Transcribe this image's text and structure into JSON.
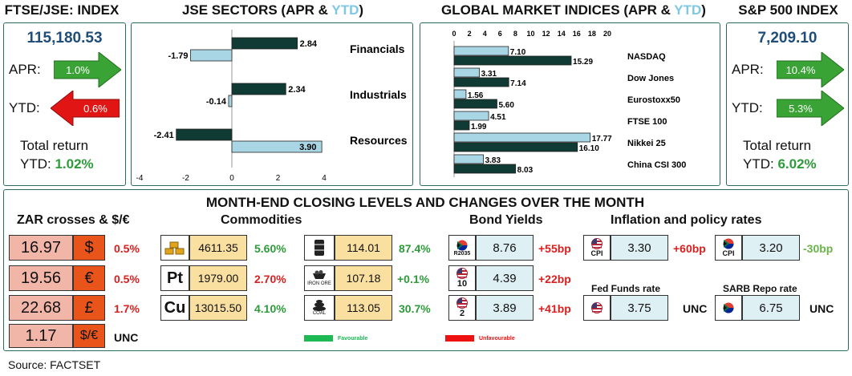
{
  "ftse": {
    "title": "FTSE/JSE: INDEX",
    "level": "115,180.53",
    "apr_label": "APR:",
    "apr_value": "1.0%",
    "ytd_label": "YTD:",
    "ytd_value": "0.6%",
    "tr_label": "Total return",
    "tr_ytd_label": "YTD:",
    "tr_ytd_value": "1.02%"
  },
  "sp": {
    "title": "S&P 500 INDEX",
    "level": "7,209.10",
    "apr_label": "APR:",
    "apr_value": "10.4%",
    "ytd_label": "YTD:",
    "ytd_value": "5.3%",
    "tr_label": "Total return",
    "tr_ytd_label": "YTD:",
    "tr_ytd_value": "6.02%"
  },
  "jse_title": {
    "pre": "JSE SECTORS (APR & ",
    "ytd": "YTD",
    "post": ")"
  },
  "global_title": {
    "pre": "GLOBAL MARKET INDICES (APR & ",
    "ytd": "YTD",
    "post": ")"
  },
  "colors": {
    "apr_bar": "#0f3b34",
    "ytd_bar": "#a9d6e5",
    "up": "#3aa335",
    "down": "#e21515",
    "ytd_title": "#7ec8e3",
    "favourable": "#1db954",
    "unfavourable": "#ee1111"
  },
  "chart_data": [
    {
      "type": "bar",
      "orientation": "horizontal",
      "title": "JSE SECTORS (APR & YTD)",
      "categories": [
        "Financials",
        "Industrials",
        "Resources"
      ],
      "series": [
        {
          "name": "APR",
          "values": [
            2.84,
            2.34,
            -2.41
          ]
        },
        {
          "name": "YTD",
          "values": [
            -1.79,
            -0.14,
            3.9
          ]
        }
      ],
      "value_labels": [
        [
          "2.84",
          "2.34",
          "-2.41"
        ],
        [
          "-1.79",
          "-0.14",
          "3.90"
        ]
      ],
      "xlim": [
        -4,
        4
      ],
      "xticks": [
        "-4",
        "-2",
        "0",
        "2",
        "4"
      ]
    },
    {
      "type": "bar",
      "orientation": "horizontal",
      "title": "GLOBAL MARKET INDICES (APR & YTD)",
      "categories": [
        "NASDAQ",
        "Dow Jones",
        "Eurostoxx50",
        "FTSE 100",
        "Nikkei 25",
        "China CSI 300"
      ],
      "series": [
        {
          "name": "YTD",
          "values": [
            7.1,
            3.31,
            1.56,
            4.51,
            17.77,
            3.83
          ]
        },
        {
          "name": "APR",
          "values": [
            15.29,
            7.14,
            5.6,
            1.99,
            16.1,
            8.03
          ]
        }
      ],
      "value_labels": [
        [
          "7.10",
          "3.31",
          "1.56",
          "4.51",
          "17.77",
          "3.83"
        ],
        [
          "15.29",
          "7.14",
          "5.60",
          "1.99",
          "16.10",
          "8.03"
        ]
      ],
      "xlim": [
        0,
        20
      ],
      "xticks": [
        "0",
        "2",
        "4",
        "6",
        "8",
        "10",
        "12",
        "14",
        "16",
        "18",
        "20"
      ]
    }
  ],
  "month_end": {
    "title": "MONTH-END CLOSING LEVELS AND CHANGES OVER THE MONTH",
    "zar_title": "ZAR crosses & $/€",
    "zar": [
      {
        "value": "16.97",
        "symbol": "$",
        "change": "0.5%"
      },
      {
        "value": "19.56",
        "symbol": "€",
        "change": "0.5%"
      },
      {
        "value": "22.68",
        "symbol": "£",
        "change": "1.7%"
      },
      {
        "value": "1.17",
        "symbol": "$/€",
        "change": "UNC"
      }
    ],
    "commodities_title": "Commodities",
    "commodities_left": [
      {
        "icon": "gold-bars-icon",
        "icon_text": "",
        "value": "4611.35",
        "change": "5.60%"
      },
      {
        "icon": "platinum-icon",
        "icon_text": "Pt",
        "value": "1979.00",
        "change": "2.70%"
      },
      {
        "icon": "copper-icon",
        "icon_text": "Cu",
        "value": "13015.50",
        "change": "4.10%"
      }
    ],
    "commodities_right": [
      {
        "icon": "oil-barrel-icon",
        "icon_text": "",
        "value": "114.01",
        "change": "87.4%"
      },
      {
        "icon": "iron-ore-icon",
        "icon_text": "IRON ORE",
        "value": "107.18",
        "change": "+0.1%"
      },
      {
        "icon": "coal-icon",
        "icon_text": "COAL",
        "value": "113.05",
        "change": "30.7%"
      }
    ],
    "bond_title": "Bond Yields",
    "bonds": [
      {
        "flag": "south-africa-flag-icon",
        "tag": "R2035",
        "value": "8.76",
        "change": "+55bp"
      },
      {
        "flag": "us-flag-icon",
        "tag": "10",
        "value": "4.39",
        "change": "+22bp"
      },
      {
        "flag": "us-flag-icon",
        "tag": "2",
        "value": "3.89",
        "change": "+41bp"
      }
    ],
    "inflation_title": "Inflation and policy rates",
    "us_cpi": {
      "tag": "CPI",
      "value": "3.30",
      "change": "+60bp"
    },
    "sa_cpi": {
      "tag": "CPI",
      "value": "3.20",
      "change": "-30bp"
    },
    "fed_label": "Fed Funds rate",
    "fed": {
      "value": "3.75",
      "change": "UNC"
    },
    "repo_label": "SARB Repo rate",
    "repo": {
      "value": "6.75",
      "change": "UNC"
    },
    "legend_fav": "Favourable",
    "legend_unfav": "Unfavourable"
  },
  "source": "Source: FACTSET"
}
